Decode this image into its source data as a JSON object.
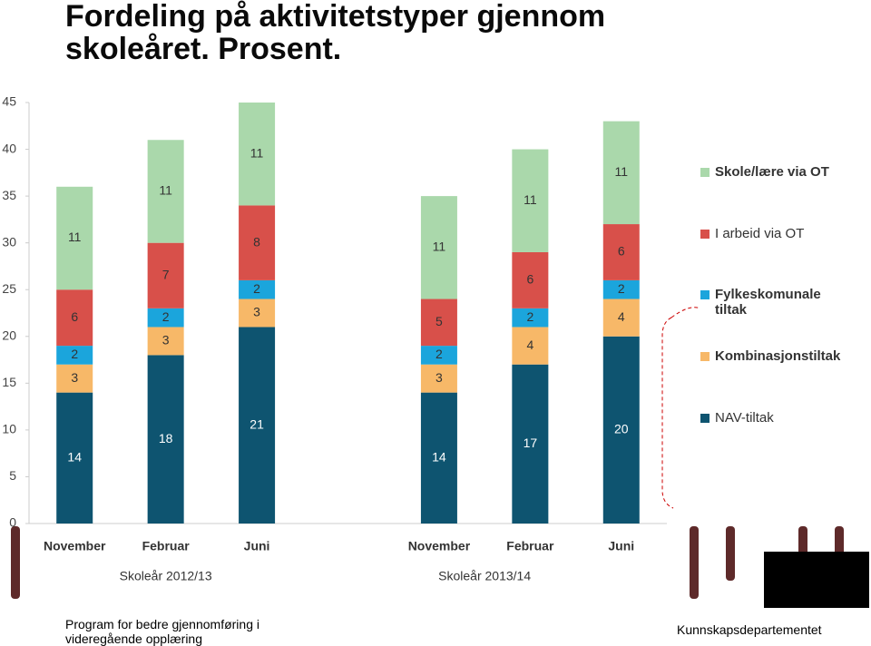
{
  "chart_data": {
    "type": "stacked-bar",
    "title": "Fordeling på aktivitetstyper gjennom skoleåret. Prosent.",
    "categories": [
      "November",
      "Februar",
      "Juni",
      null,
      "November",
      "Februar",
      "Juni"
    ],
    "groups": [
      {
        "label": "Skoleår 2012/13"
      },
      {
        "label": "Skoleår 2013/14"
      }
    ],
    "series": [
      {
        "name": "NAV-tiltak",
        "color": "#0e5470",
        "values": [
          14,
          18,
          21,
          null,
          14,
          17,
          20
        ]
      },
      {
        "name": "Kombinasjonstiltak",
        "color": "#f7b868",
        "values": [
          3,
          3,
          3,
          null,
          3,
          4,
          4
        ]
      },
      {
        "name": "Fylkeskomunale tiltak",
        "color": "#1ba5dc",
        "values": [
          2,
          2,
          2,
          null,
          2,
          2,
          2
        ]
      },
      {
        "name": "I arbeid via OT",
        "color": "#d8504a",
        "values": [
          6,
          7,
          8,
          null,
          5,
          6,
          6
        ]
      },
      {
        "name": "Skole/lære via OT",
        "color": "#aad8ab",
        "values": [
          11,
          11,
          11,
          null,
          11,
          11,
          11
        ]
      }
    ],
    "ylim": [
      0,
      45
    ],
    "yticks": [
      0,
      5,
      10,
      15,
      20,
      25,
      30,
      35,
      40,
      45
    ],
    "grid": false,
    "footer_left": "Program for bedre gjennomføring i videregående opplæring",
    "footer_right": "Kunnskapsdepartementet"
  }
}
